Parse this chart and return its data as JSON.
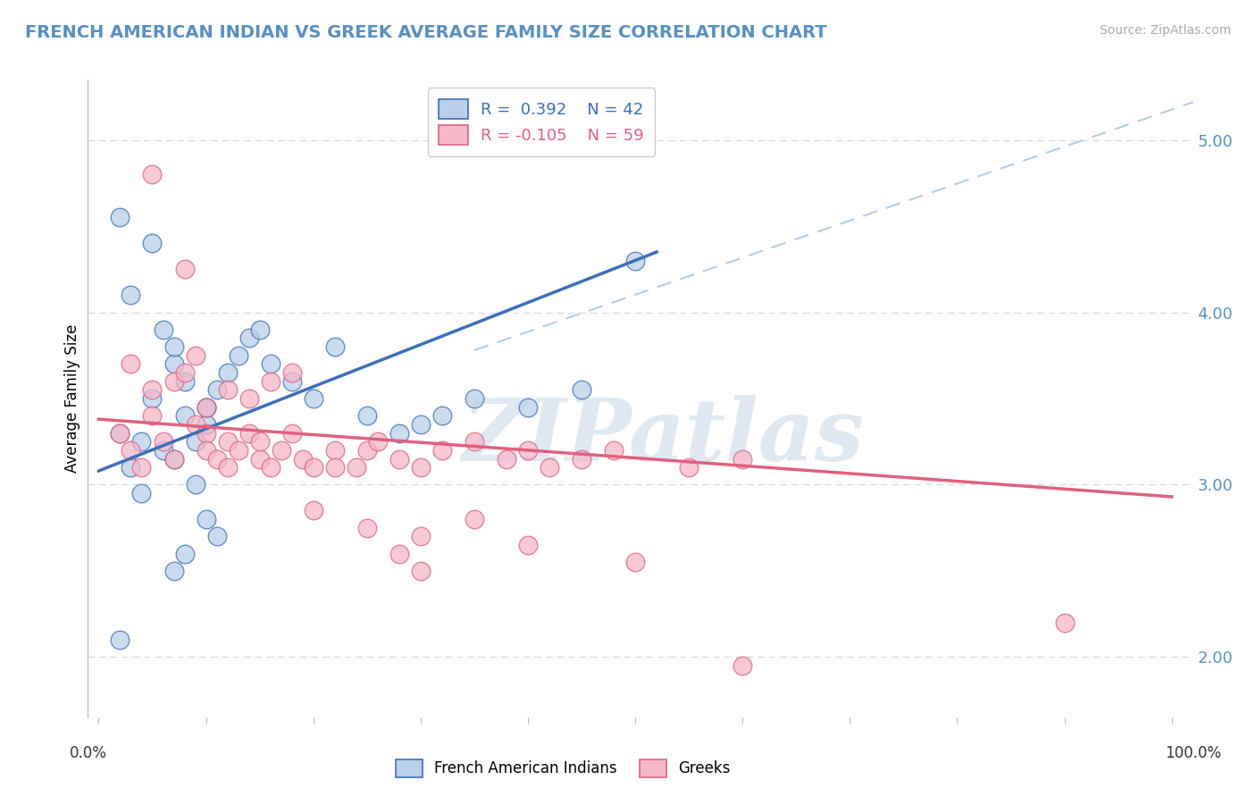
{
  "title": "FRENCH AMERICAN INDIAN VS GREEK AVERAGE FAMILY SIZE CORRELATION CHART",
  "source": "Source: ZipAtlas.com",
  "ylabel": "Average Family Size",
  "ymin": 1.65,
  "ymax": 5.35,
  "xmin": -0.01,
  "xmax": 1.02,
  "blue_R": 0.392,
  "blue_N": 42,
  "pink_R": -0.105,
  "pink_N": 59,
  "blue_color": "#b8d0e8",
  "pink_color": "#f5b8c8",
  "blue_line_color": "#3a6fba",
  "pink_line_color": "#e06080",
  "dash_line_color": "#90b8d8",
  "title_color": "#5590c8",
  "right_tick_color": "#5590c8",
  "source_color": "#aaaaaa",
  "watermark_color": "#c8d8e8",
  "grid_color": "#d8d8d8",
  "blue_scatter_x": [
    0.02,
    0.02,
    0.02,
    0.03,
    0.03,
    0.04,
    0.04,
    0.05,
    0.05,
    0.06,
    0.06,
    0.07,
    0.07,
    0.07,
    0.08,
    0.08,
    0.09,
    0.09,
    0.1,
    0.1,
    0.1,
    0.11,
    0.11,
    0.12,
    0.13,
    0.14,
    0.15,
    0.16,
    0.18,
    0.2,
    0.22,
    0.25,
    0.28,
    0.3,
    0.32,
    0.35,
    0.4,
    0.45,
    0.5,
    0.07,
    0.08,
    0.1
  ],
  "blue_scatter_y": [
    3.3,
    4.55,
    2.1,
    3.1,
    4.1,
    3.25,
    2.95,
    3.5,
    4.4,
    3.9,
    3.2,
    3.7,
    3.8,
    3.15,
    3.6,
    3.4,
    3.25,
    3.0,
    3.45,
    3.35,
    2.8,
    3.55,
    2.7,
    3.65,
    3.75,
    3.85,
    3.9,
    3.7,
    3.6,
    3.5,
    3.8,
    3.4,
    3.3,
    3.35,
    3.4,
    3.5,
    3.45,
    3.55,
    4.3,
    2.5,
    2.6,
    3.45
  ],
  "pink_scatter_x": [
    0.02,
    0.03,
    0.04,
    0.05,
    0.05,
    0.06,
    0.07,
    0.08,
    0.09,
    0.1,
    0.1,
    0.11,
    0.12,
    0.12,
    0.13,
    0.14,
    0.15,
    0.15,
    0.16,
    0.17,
    0.18,
    0.19,
    0.2,
    0.2,
    0.22,
    0.22,
    0.24,
    0.25,
    0.26,
    0.28,
    0.28,
    0.3,
    0.3,
    0.32,
    0.35,
    0.35,
    0.38,
    0.4,
    0.4,
    0.42,
    0.45,
    0.48,
    0.5,
    0.55,
    0.6,
    0.03,
    0.05,
    0.07,
    0.08,
    0.09,
    0.1,
    0.12,
    0.14,
    0.16,
    0.18,
    0.25,
    0.3,
    0.6,
    0.9
  ],
  "pink_scatter_y": [
    3.3,
    3.2,
    3.1,
    3.4,
    4.8,
    3.25,
    3.15,
    4.25,
    3.35,
    3.3,
    3.2,
    3.15,
    3.25,
    3.1,
    3.2,
    3.3,
    3.15,
    3.25,
    3.1,
    3.2,
    3.3,
    3.15,
    3.1,
    2.85,
    3.2,
    3.1,
    3.1,
    3.2,
    3.25,
    3.15,
    2.6,
    3.1,
    2.7,
    3.2,
    3.25,
    2.8,
    3.15,
    3.2,
    2.65,
    3.1,
    3.15,
    3.2,
    2.55,
    3.1,
    3.15,
    3.7,
    3.55,
    3.6,
    3.65,
    3.75,
    3.45,
    3.55,
    3.5,
    3.6,
    3.65,
    2.75,
    2.5,
    1.95,
    2.2
  ],
  "blue_line_x1": 0.0,
  "blue_line_x2": 0.52,
  "blue_line_y1": 3.08,
  "blue_line_y2": 4.35,
  "pink_line_x1": 0.0,
  "pink_line_x2": 1.0,
  "pink_line_y1": 3.38,
  "pink_line_y2": 2.93,
  "dash_line_x1": 0.35,
  "dash_line_x2": 1.02,
  "dash_line_y1": 3.78,
  "dash_line_y2": 5.22,
  "yticks": [
    2.0,
    3.0,
    4.0,
    5.0
  ],
  "xtick_positions": [
    0.0,
    0.1,
    0.2,
    0.3,
    0.4,
    0.5,
    0.6,
    0.7,
    0.8,
    0.9,
    1.0
  ]
}
